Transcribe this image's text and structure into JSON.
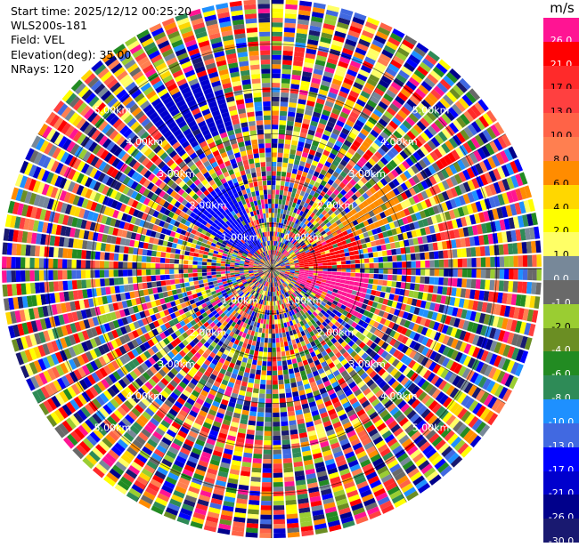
{
  "header": {
    "start_time": "Start time: 2025/12/12 00:25:20",
    "instrument": "WLS200s-181",
    "field": "Field: VEL",
    "elevation": "Elevation(deg): 35.00",
    "nrays": "NRays: 120"
  },
  "colorbar": {
    "unit": "m/s",
    "levels": [
      {
        "label": "26.0",
        "color": "#ff1493"
      },
      {
        "label": "21.0",
        "color": "#ff0000"
      },
      {
        "label": "17.0",
        "color": "#ff2a2a"
      },
      {
        "label": "13.0",
        "color": "#ff4040"
      },
      {
        "label": "10.0",
        "color": "#ff6347"
      },
      {
        "label": "8.0",
        "color": "#ff7f50"
      },
      {
        "label": "6.0",
        "color": "#ff8c00"
      },
      {
        "label": "4.0",
        "color": "#ffd700"
      },
      {
        "label": "2.0",
        "color": "#ffff00"
      },
      {
        "label": "1.0",
        "color": "#ffff66"
      },
      {
        "label": "0.0",
        "color": "#778899"
      },
      {
        "label": "-1.0",
        "color": "#696969"
      },
      {
        "label": "-2.0",
        "color": "#9acd32"
      },
      {
        "label": "-4.0",
        "color": "#6b8e23"
      },
      {
        "label": "-6.0",
        "color": "#228b22"
      },
      {
        "label": "-8.0",
        "color": "#2e8b57"
      },
      {
        "label": "-10.0",
        "color": "#1e90ff"
      },
      {
        "label": "-13.0",
        "color": "#4169e1"
      },
      {
        "label": "-17.0",
        "color": "#0000ff"
      },
      {
        "label": "-21.0",
        "color": "#0000cd"
      },
      {
        "label": "-26.0",
        "color": "#00008b"
      },
      {
        "label": "-30.0",
        "color": "#191970"
      }
    ]
  },
  "chart_data": {
    "type": "heatmap",
    "projection": "polar PPI",
    "field": "VEL",
    "unit": "m/s",
    "elevation_deg": 35.0,
    "nrays": 120,
    "range_rings_km": [
      1.0,
      2.0,
      3.0,
      4.0,
      5.0
    ],
    "range_labels": [
      "1.00km",
      "2.00km",
      "3.00km",
      "4.00km",
      "5.00km"
    ],
    "range_label_quadrants": [
      "NW",
      "NE",
      "SE",
      "SW"
    ],
    "max_range_km": 6.0,
    "color_levels": [
      26.0,
      21.0,
      17.0,
      13.0,
      10.0,
      8.0,
      6.0,
      4.0,
      2.0,
      1.0,
      0.0,
      -1.0,
      -2.0,
      -4.0,
      -6.0,
      -8.0,
      -10.0,
      -13.0,
      -17.0,
      -21.0,
      -26.0,
      -30.0
    ],
    "coherent_regions": [
      {
        "azimuth_start_deg": 92,
        "azimuth_end_deg": 120,
        "range_start_km": 0.6,
        "range_end_km": 2.2,
        "value": 26.0
      },
      {
        "azimuth_start_deg": 62,
        "azimuth_end_deg": 90,
        "range_start_km": 0.6,
        "range_end_km": 2.0,
        "value": 21.0
      },
      {
        "azimuth_start_deg": 55,
        "azimuth_end_deg": 68,
        "range_start_km": 1.6,
        "range_end_km": 3.2,
        "value": 6.0
      },
      {
        "azimuth_start_deg": 300,
        "azimuth_end_deg": 335,
        "range_start_km": 0.5,
        "range_end_km": 2.2,
        "value": -17.0
      },
      {
        "azimuth_start_deg": 320,
        "azimuth_end_deg": 345,
        "range_start_km": 3.2,
        "range_end_km": 4.6,
        "value": -21.0
      }
    ],
    "far_field": "noise"
  }
}
